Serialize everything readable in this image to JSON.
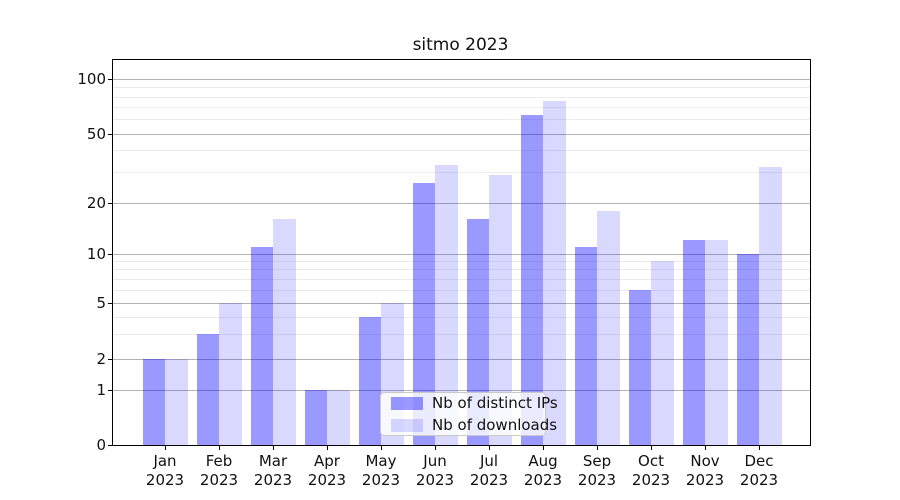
{
  "title": "sitmo 2023",
  "chart_data": {
    "type": "bar",
    "title": "sitmo 2023",
    "categories": [
      "Jan",
      "Feb",
      "Mar",
      "Apr",
      "May",
      "Jun",
      "Jul",
      "Aug",
      "Sep",
      "Oct",
      "Nov",
      "Dec"
    ],
    "category_year": "2023",
    "series": [
      {
        "name": "Nb of distinct IPs",
        "color": "rgba(0,0,255,0.4)",
        "values": [
          2,
          3,
          11,
          1,
          4,
          26,
          16,
          63,
          11,
          6,
          12,
          10
        ]
      },
      {
        "name": "Nb of downloads",
        "color": "rgba(0,0,255,0.15)",
        "values": [
          2,
          5,
          16,
          1,
          5,
          33,
          29,
          76,
          18,
          9,
          12,
          32
        ]
      }
    ],
    "yscale": "log-like with 0 baseline",
    "y_major_ticks": [
      0,
      1,
      2,
      5,
      10,
      20,
      50,
      100
    ],
    "y_minor_gridlines": [
      3,
      4,
      6,
      7,
      8,
      9,
      30,
      40,
      60,
      70,
      80,
      90
    ],
    "xlabel": "",
    "ylabel": "",
    "grid": true,
    "legend_position": "lower center"
  },
  "legend": {
    "items": [
      {
        "label": "Nb of distinct IPs",
        "swatch_color": "rgba(0,0,255,0.4)"
      },
      {
        "label": "Nb of downloads",
        "swatch_color": "rgba(0,0,255,0.15)"
      }
    ]
  },
  "colors": {
    "bar_dark": "rgba(0,0,255,0.4)",
    "bar_light": "rgba(0,0,255,0.15)",
    "major_grid": "#b3b3b3",
    "minor_grid": "#ebebeb",
    "axis": "#000000",
    "background": "#ffffff"
  }
}
